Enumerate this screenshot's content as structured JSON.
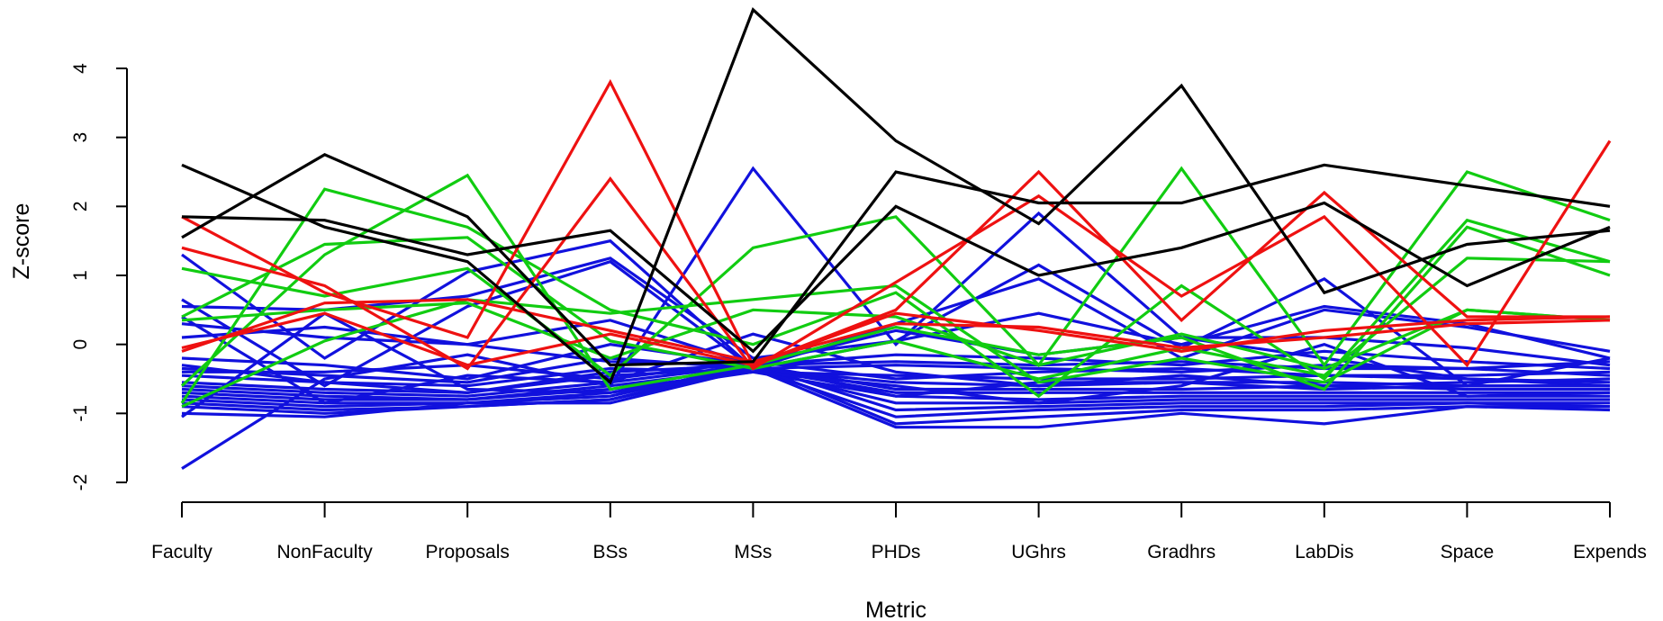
{
  "chart_data": {
    "type": "line",
    "xlabel": "Metric",
    "ylabel": "Z-score",
    "categories": [
      "Faculty",
      "NonFaculty",
      "Proposals",
      "BSs",
      "MSs",
      "PHDs",
      "UGhrs",
      "Gradhrs",
      "LabDis",
      "Space",
      "Expends"
    ],
    "ylim": [
      -2.3,
      4.85
    ],
    "yticks": [
      -2,
      -1,
      0,
      1,
      2,
      3,
      4
    ],
    "grid": false,
    "legend": "none",
    "colors": {
      "black": "#000000",
      "red": "#ee1111",
      "green": "#11cc11",
      "blue": "#1111dd"
    },
    "series": [
      {
        "color": "black",
        "values": [
          2.6,
          1.7,
          1.2,
          -0.55,
          4.85,
          2.95,
          1.75,
          3.75,
          0.75,
          1.45,
          1.65
        ]
      },
      {
        "color": "black",
        "values": [
          1.55,
          2.75,
          1.85,
          -0.3,
          -0.25,
          2.5,
          2.05,
          2.05,
          2.6,
          2.3,
          2.0
        ]
      },
      {
        "color": "black",
        "values": [
          1.85,
          1.8,
          1.3,
          1.65,
          -0.1,
          2.0,
          1.0,
          1.4,
          2.05,
          0.85,
          1.7
        ]
      },
      {
        "color": "red",
        "values": [
          1.85,
          0.75,
          0.1,
          3.8,
          -0.3,
          0.5,
          2.5,
          0.35,
          2.2,
          0.4,
          0.4
        ]
      },
      {
        "color": "red",
        "values": [
          1.4,
          0.85,
          -0.35,
          2.4,
          -0.35,
          0.9,
          2.15,
          0.7,
          1.85,
          -0.3,
          2.95
        ]
      },
      {
        "color": "red",
        "values": [
          -0.1,
          0.6,
          0.65,
          0.2,
          -0.25,
          0.3,
          0.25,
          -0.05,
          0.1,
          0.3,
          0.35
        ]
      },
      {
        "color": "red",
        "values": [
          -0.05,
          0.45,
          -0.3,
          0.15,
          -0.3,
          0.45,
          0.2,
          -0.1,
          0.2,
          0.35,
          0.4
        ]
      },
      {
        "color": "green",
        "values": [
          1.1,
          0.7,
          1.1,
          -0.45,
          1.4,
          1.85,
          -0.3,
          2.55,
          -0.3,
          2.5,
          1.8
        ]
      },
      {
        "color": "green",
        "values": [
          -0.85,
          2.25,
          1.7,
          0.5,
          0.0,
          0.75,
          -0.75,
          0.85,
          -0.5,
          1.8,
          1.2
        ]
      },
      {
        "color": "green",
        "values": [
          -0.6,
          1.3,
          2.45,
          -0.65,
          -0.3,
          0.25,
          -0.15,
          0.1,
          -0.65,
          1.7,
          1.0
        ]
      },
      {
        "color": "green",
        "values": [
          0.4,
          1.45,
          1.55,
          0.05,
          -0.35,
          0.05,
          -0.5,
          -0.05,
          -0.45,
          1.25,
          1.2
        ]
      },
      {
        "color": "green",
        "values": [
          -0.9,
          0.05,
          0.65,
          0.45,
          0.65,
          0.85,
          -0.55,
          -0.2,
          -0.55,
          0.5,
          0.35
        ]
      },
      {
        "color": "green",
        "values": [
          0.35,
          0.5,
          0.6,
          -0.2,
          0.5,
          0.4,
          -0.3,
          0.15,
          -0.35,
          0.5,
          0.35
        ]
      },
      {
        "color": "blue",
        "values": [
          -1.8,
          -0.5,
          -0.15,
          -0.6,
          2.55,
          0.0,
          1.9,
          0.1,
          -0.2,
          -0.5,
          -0.6
        ]
      },
      {
        "color": "blue",
        "values": [
          1.3,
          -0.2,
          1.05,
          1.5,
          -0.35,
          0.05,
          1.15,
          -0.05,
          0.95,
          -0.6,
          -0.2
        ]
      },
      {
        "color": "blue",
        "values": [
          0.65,
          -0.6,
          0.55,
          1.2,
          -0.35,
          0.3,
          0.95,
          -0.2,
          0.5,
          0.25,
          -0.1
        ]
      },
      {
        "color": "blue",
        "values": [
          0.55,
          0.5,
          0.7,
          1.25,
          -0.2,
          0.05,
          0.45,
          0.0,
          0.55,
          0.3,
          -0.2
        ]
      },
      {
        "color": "blue",
        "values": [
          0.1,
          0.25,
          0.0,
          0.35,
          -0.3,
          0.2,
          -0.15,
          0.1,
          0.1,
          -0.05,
          -0.3
        ]
      },
      {
        "color": "blue",
        "values": [
          -0.2,
          -0.3,
          -0.5,
          0.0,
          -0.3,
          -0.15,
          -0.2,
          -0.3,
          -0.1,
          -0.25,
          -0.35
        ]
      },
      {
        "color": "blue",
        "values": [
          -0.35,
          -0.45,
          -0.55,
          -0.2,
          -0.35,
          -0.3,
          -0.35,
          -0.4,
          -0.3,
          -0.35,
          -0.45
        ]
      },
      {
        "color": "blue",
        "values": [
          -0.45,
          -0.55,
          -0.6,
          -0.35,
          -0.4,
          -0.45,
          -0.5,
          -0.5,
          -0.45,
          -0.5,
          -0.55
        ]
      },
      {
        "color": "blue",
        "values": [
          -0.55,
          -0.65,
          -0.7,
          -0.45,
          -0.35,
          -0.55,
          -0.6,
          -0.55,
          -0.55,
          -0.6,
          -0.6
        ]
      },
      {
        "color": "blue",
        "values": [
          -0.6,
          -0.7,
          -0.75,
          -0.55,
          -0.3,
          -0.65,
          -0.65,
          -0.65,
          -0.6,
          -0.65,
          -0.65
        ]
      },
      {
        "color": "blue",
        "values": [
          -0.65,
          -0.75,
          -0.8,
          -0.6,
          -0.35,
          -0.7,
          -0.7,
          -0.7,
          -0.7,
          -0.7,
          -0.7
        ]
      },
      {
        "color": "blue",
        "values": [
          -0.7,
          -0.8,
          -0.8,
          -0.65,
          -0.4,
          -0.75,
          -0.8,
          -0.75,
          -0.75,
          -0.75,
          -0.75
        ]
      },
      {
        "color": "blue",
        "values": [
          -0.75,
          -0.85,
          -0.85,
          -0.7,
          -0.35,
          -0.85,
          -0.85,
          -0.8,
          -0.8,
          -0.8,
          -0.8
        ]
      },
      {
        "color": "blue",
        "values": [
          -0.8,
          -0.9,
          -0.85,
          -0.75,
          -0.3,
          -0.95,
          -0.9,
          -0.85,
          -0.85,
          -0.85,
          -0.85
        ]
      },
      {
        "color": "blue",
        "values": [
          -0.85,
          -0.95,
          -0.9,
          -0.8,
          -0.35,
          -1.05,
          -0.95,
          -0.9,
          -0.9,
          -0.85,
          -0.9
        ]
      },
      {
        "color": "blue",
        "values": [
          -0.9,
          -1.0,
          -0.9,
          -0.8,
          -0.3,
          -1.15,
          -1.05,
          -0.95,
          -0.95,
          -0.9,
          -0.9
        ]
      },
      {
        "color": "blue",
        "values": [
          -1.0,
          -1.05,
          -0.85,
          -0.85,
          -0.35,
          -1.2,
          -1.2,
          -1.0,
          -1.15,
          -0.9,
          -0.95
        ]
      },
      {
        "color": "blue",
        "values": [
          -1.05,
          0.45,
          -0.65,
          -0.7,
          -0.4,
          -0.6,
          -0.85,
          -0.6,
          0.0,
          -0.75,
          -0.7
        ]
      },
      {
        "color": "blue",
        "values": [
          0.4,
          -0.85,
          -0.45,
          -0.55,
          0.15,
          -0.4,
          -0.6,
          -0.45,
          -0.6,
          -0.55,
          -0.5
        ]
      },
      {
        "color": "blue",
        "values": [
          -0.4,
          -0.4,
          -0.3,
          -0.5,
          -0.25,
          -0.5,
          -0.4,
          -0.35,
          -0.45,
          -0.45,
          -0.4
        ]
      },
      {
        "color": "blue",
        "values": [
          0.3,
          0.1,
          0.0,
          -0.25,
          -0.3,
          -0.25,
          -0.3,
          -0.25,
          -0.35,
          -0.35,
          -0.25
        ]
      },
      {
        "color": "blue",
        "values": [
          -0.3,
          -0.55,
          -0.7,
          -0.4,
          -0.3,
          -0.75,
          -0.55,
          -0.55,
          -0.65,
          -0.6,
          -0.6
        ]
      }
    ]
  }
}
